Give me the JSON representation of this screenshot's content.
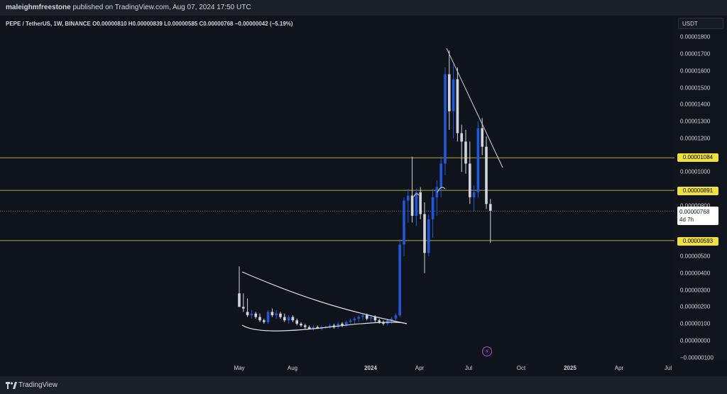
{
  "header": {
    "author": "maleighmfreestone",
    "published_text": "published on TradingView.com, Aug 07, 2024 17:50 UTC"
  },
  "legend": {
    "text": "PEPE / TetherUS, 1W, BINANCE  O0.00000810  H0.00000839  L0.00000585  C0.00000768  −0.00000042 (−5.19%)"
  },
  "price_scale": {
    "currency": "USDT",
    "labels": [
      "0.00001800",
      "0.00001700",
      "0.00001600",
      "0.00001500",
      "0.00001400",
      "0.00001300",
      "0.00001200",
      "0.00001000",
      "0.00000800",
      "0.00000500",
      "0.00000400",
      "0.00000300",
      "0.00000200",
      "0.00000100",
      "0.00000000",
      "−0.00000100"
    ],
    "levels": [
      {
        "label": "0.00001084",
        "color": "#f0e040"
      },
      {
        "label": "0.00000891",
        "color": "#f0e040"
      },
      {
        "label": "0.00000593",
        "color": "#f0e040"
      }
    ],
    "current": {
      "price": "0.00000768",
      "countdown": "4d 7h"
    }
  },
  "time_scale": {
    "labels": [
      {
        "text": "May",
        "bold": false
      },
      {
        "text": "Aug",
        "bold": false
      },
      {
        "text": "2024",
        "bold": true
      },
      {
        "text": "Apr",
        "bold": false
      },
      {
        "text": "Jul",
        "bold": false
      },
      {
        "text": "Oct",
        "bold": false
      },
      {
        "text": "2025",
        "bold": true
      },
      {
        "text": "Apr",
        "bold": false
      },
      {
        "text": "Jul",
        "bold": false
      }
    ]
  },
  "chart_data": {
    "type": "candlestick",
    "symbol": "PEPE / TetherUS",
    "interval": "1W",
    "exchange": "BINANCE",
    "ylim": [
      -1e-06,
      1.85e-05
    ],
    "last_candle": {
      "open": 8.1e-06,
      "high": 8.39e-06,
      "low": 5.85e-06,
      "close": 7.68e-06
    },
    "horizontal_levels": [
      1.084e-05,
      8.91e-06,
      5.93e-06
    ],
    "colors": {
      "up": "#2157d9",
      "down": "#d1d4dc",
      "level": "#f0e040",
      "trendline": "#d1d4dc"
    },
    "candles": [
      [
        2.8e-06,
        4.4e-06,
        2e-06,
        2e-06
      ],
      [
        2e-06,
        2.8e-06,
        1.7e-06,
        1.9e-06
      ],
      [
        1.7e-06,
        2.5e-06,
        1.4e-06,
        1.5e-06
      ],
      [
        1.5e-06,
        1.8e-06,
        1.3e-06,
        1.6e-06
      ],
      [
        1.6e-06,
        1.7e-06,
        1.3e-06,
        1.4e-06
      ],
      [
        1.4e-06,
        1.6e-06,
        1.1e-06,
        1.2e-06
      ],
      [
        1.2e-06,
        1.3e-06,
        1e-06,
        1.1e-06
      ],
      [
        1.1e-06,
        1.8e-06,
        1e-06,
        1.7e-06
      ],
      [
        1.7e-06,
        1.9e-06,
        1.4e-06,
        1.5e-06
      ],
      [
        1.5e-06,
        1.8e-06,
        1.3e-06,
        1.6e-06
      ],
      [
        1.6e-06,
        1.7e-06,
        1.3e-06,
        1.4e-06
      ],
      [
        1.4e-06,
        1.6e-06,
        1.1e-06,
        1.2e-06
      ],
      [
        1.2e-06,
        1.5e-06,
        1e-06,
        1.4e-06
      ],
      [
        1.4e-06,
        1.5e-06,
        1.1e-06,
        1.2e-06
      ],
      [
        1.2e-06,
        1.3e-06,
        9e-07,
        1e-06
      ],
      [
        1e-06,
        1.1e-06,
        8e-07,
        9e-07
      ],
      [
        9e-07,
        1e-06,
        7e-07,
        8e-07
      ],
      [
        8e-07,
        9e-07,
        7e-07,
        7e-07
      ],
      [
        7e-07,
        9e-07,
        6e-07,
        8e-07
      ],
      [
        8e-07,
        9e-07,
        7e-07,
        7e-07
      ],
      [
        7e-07,
        9e-07,
        6e-07,
        8e-07
      ],
      [
        8e-07,
        9e-07,
        7e-07,
        8e-07
      ],
      [
        8e-07,
        1e-06,
        7e-07,
        9e-07
      ],
      [
        9e-07,
        1e-06,
        7e-07,
        8e-07
      ],
      [
        8e-07,
        1.1e-06,
        7e-07,
        1e-06
      ],
      [
        1e-06,
        1.1e-06,
        8e-07,
        9e-07
      ],
      [
        9e-07,
        1.2e-06,
        8e-07,
        1.1e-06
      ],
      [
        1.1e-06,
        1.3e-06,
        1e-06,
        1.2e-06
      ],
      [
        1.2e-06,
        1.4e-06,
        1e-06,
        1.3e-06
      ],
      [
        1.3e-06,
        1.5e-06,
        1.1e-06,
        1.4e-06
      ],
      [
        1.4e-06,
        1.6e-06,
        1.2e-06,
        1.5e-06
      ],
      [
        1.5e-06,
        1.6e-06,
        1.2e-06,
        1.3e-06
      ],
      [
        1.3e-06,
        1.5e-06,
        1.1e-06,
        1.4e-06
      ],
      [
        1.4e-06,
        1.5e-06,
        1.1e-06,
        1.2e-06
      ],
      [
        1.2e-06,
        1.3e-06,
        1e-06,
        1.1e-06
      ],
      [
        1.1e-06,
        1.2e-06,
        9e-07,
        1e-06
      ],
      [
        1e-06,
        1.3e-06,
        9e-07,
        1.2e-06
      ],
      [
        1.2e-06,
        1.4e-06,
        1e-06,
        1.3e-06
      ],
      [
        1.3e-06,
        1.6e-06,
        1.2e-06,
        1.5e-06
      ],
      [
        1.5e-06,
        6e-06,
        1.4e-06,
        5.7e-06
      ],
      [
        5.7e-06,
        8.5e-06,
        5e-06,
        8.3e-06
      ],
      [
        8.3e-06,
        9e-06,
        7e-06,
        8.6e-06
      ],
      [
        8.6e-06,
        1.09e-05,
        7e-06,
        7.4e-06
      ],
      [
        7.4e-06,
        9e-06,
        6.8e-06,
        8.8e-06
      ],
      [
        8.8e-06,
        9.1e-06,
        7.2e-06,
        7.5e-06
      ],
      [
        7.5e-06,
        8.2e-06,
        4e-06,
        5.2e-06
      ],
      [
        5.2e-06,
        7.5e-06,
        5e-06,
        7.2e-06
      ],
      [
        7.2e-06,
        9e-06,
        6.1e-06,
        8.5e-06
      ],
      [
        8.5e-06,
        9.5e-06,
        7.4e-06,
        9.1e-06
      ],
      [
        9.1e-06,
        1.09e-05,
        8.5e-06,
        1.05e-05
      ],
      [
        1.05e-05,
        1.62e-05,
        9.8e-06,
        1.58e-05
      ],
      [
        1.58e-05,
        1.72e-05,
        1.25e-05,
        1.36e-05
      ],
      [
        1.36e-05,
        1.64e-05,
        1.2e-05,
        1.55e-05
      ],
      [
        1.55e-05,
        1.62e-05,
        1.18e-05,
        1.23e-05
      ],
      [
        1.23e-05,
        1.28e-05,
        1e-05,
        1.18e-05
      ],
      [
        1.18e-05,
        1.25e-05,
        9.9e-06,
        1.05e-05
      ],
      [
        1.05e-05,
        1.18e-05,
        8.1e-06,
        8.5e-06
      ],
      [
        8.5e-06,
        9.2e-06,
        7.7e-06,
        8.8e-06
      ],
      [
        8.8e-06,
        1.3e-05,
        8.5e-06,
        1.26e-05
      ],
      [
        1.26e-05,
        1.32e-05,
        1.1e-05,
        1.15e-05
      ],
      [
        1.15e-05,
        1.21e-05,
        7.8e-06,
        8.1e-06
      ],
      [
        8.1e-06,
        8.4e-06,
        5.8e-06,
        7.7e-06
      ]
    ]
  }
}
